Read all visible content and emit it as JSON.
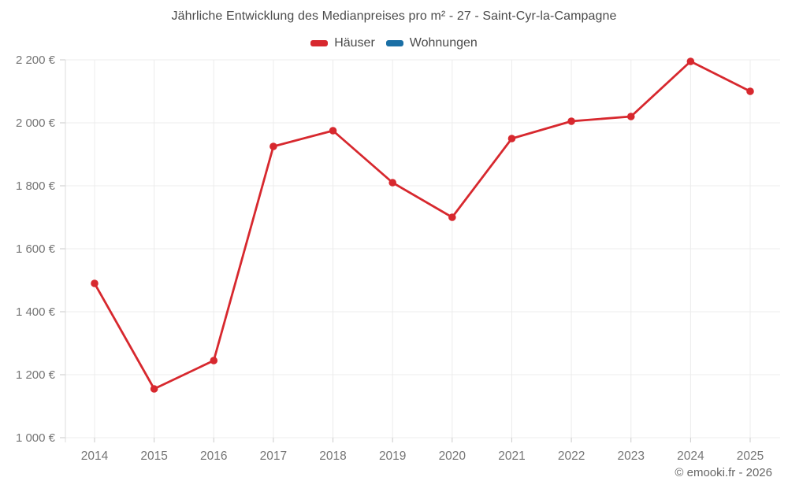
{
  "header": {
    "title": "Jährliche Entwicklung des Medianpreises pro m² - 27 - Saint-Cyr-la-Campagne"
  },
  "legend": {
    "items": [
      {
        "label": "Häuser",
        "color": "#d7282e"
      },
      {
        "label": "Wohnungen",
        "color": "#1a6fa5"
      }
    ]
  },
  "footer": {
    "copyright": "© emooki.fr - 2026"
  },
  "chart_data": {
    "type": "line",
    "title": "Jährliche Entwicklung des Medianpreises pro m² - 27 - Saint-Cyr-la-Campagne",
    "x": [
      "2014",
      "2015",
      "2016",
      "2017",
      "2018",
      "2019",
      "2020",
      "2021",
      "2022",
      "2023",
      "2024",
      "2025"
    ],
    "series": [
      {
        "name": "Häuser",
        "color": "#d7282e",
        "values": [
          1490,
          1155,
          1245,
          1925,
          1975,
          1810,
          1700,
          1950,
          2005,
          2020,
          2195,
          2100
        ]
      },
      {
        "name": "Wohnungen",
        "color": "#1a6fa5",
        "values": []
      }
    ],
    "xlabel": "",
    "ylabel": "",
    "ylim": [
      1000,
      2200
    ],
    "ytick_step": 200,
    "ytick_labels": [
      "1 000 €",
      "1 200 €",
      "1 400 €",
      "1 600 €",
      "1 800 €",
      "2 000 €",
      "2 200 €"
    ],
    "currency": "€",
    "grid": true,
    "legend_position": "top",
    "colors": {
      "gridline": "#ececec",
      "axis_line": "#dddddd",
      "tick": "#c9c9c9",
      "tick_label": "#757575"
    }
  }
}
